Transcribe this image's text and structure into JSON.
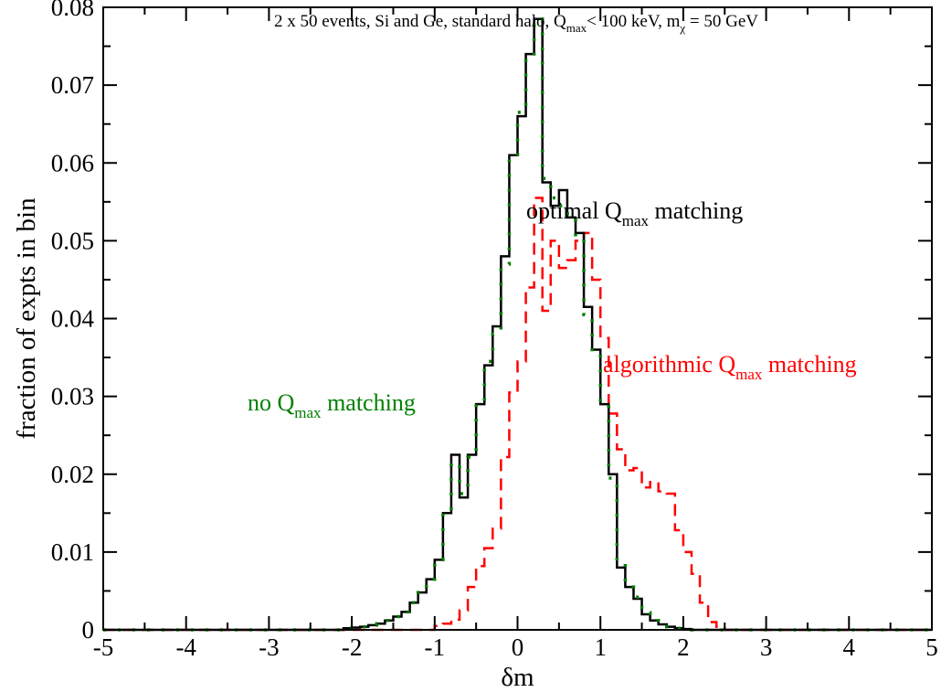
{
  "chart_data": {
    "type": "line",
    "title": {
      "pre": "2 x 50 events, Si and Ge, standard halo, Q",
      "sub1": "max",
      "mid": "< 100 keV, m",
      "sub2": "χ",
      "post": " = 50 GeV"
    },
    "xlabel": "δm",
    "ylabel": "fraction of expts in bin",
    "xlim": [
      -5,
      5
    ],
    "ylim": [
      0,
      0.08
    ],
    "x_ticks": [
      "-5",
      "-4",
      "-3",
      "-2",
      "-1",
      "0",
      "1",
      "2",
      "3",
      "4",
      "5"
    ],
    "y_ticks": [
      "0",
      "0.01",
      "0.02",
      "0.03",
      "0.04",
      "0.05",
      "0.06",
      "0.07",
      "0.08"
    ],
    "bin_width": 0.1,
    "bin_start": -5.0,
    "series": [
      {
        "key": "optimal",
        "label": {
          "pre": "optimal Q",
          "sub": "max",
          "post": " matching"
        },
        "color": "#000000",
        "style": "solid",
        "values": [
          0,
          0,
          0,
          0,
          0,
          0,
          0,
          0,
          0,
          0,
          0,
          0,
          0,
          0,
          0,
          0,
          0,
          0,
          0,
          0,
          0,
          0,
          0,
          0,
          0,
          0,
          0,
          0,
          0,
          0.0002,
          0.0003,
          0.0004,
          0.0006,
          0.0008,
          0.0012,
          0.0017,
          0.0023,
          0.0035,
          0.0048,
          0.0065,
          0.009,
          0.015,
          0.0225,
          0.017,
          0.0225,
          0.029,
          0.034,
          0.039,
          0.048,
          0.061,
          0.066,
          0.074,
          0.0785,
          0.0575,
          0.0545,
          0.0565,
          0.053,
          0.051,
          0.0415,
          0.036,
          0.029,
          0.02,
          0.008,
          0.0055,
          0.004,
          0.002,
          0.0012,
          0.0007,
          0.0004,
          0.0002,
          0.0001,
          0,
          0,
          0,
          0,
          0,
          0,
          0,
          0,
          0,
          0,
          0,
          0,
          0,
          0,
          0,
          0,
          0,
          0,
          0,
          0,
          0,
          0,
          0,
          0,
          0,
          0,
          0,
          0,
          0
        ]
      },
      {
        "key": "algorithmic",
        "label": {
          "pre": "algorithmic Q",
          "sub": "max",
          "post": " matching"
        },
        "color": "#ff0000",
        "style": "dashed",
        "values": [
          0,
          0,
          0,
          0,
          0,
          0,
          0,
          0,
          0,
          0,
          0,
          0,
          0,
          0,
          0,
          0,
          0,
          0,
          0,
          0,
          0,
          0,
          0,
          0,
          0,
          0,
          0,
          0,
          0,
          0,
          0,
          0,
          0,
          0,
          0,
          0,
          0,
          0,
          0,
          0,
          0.0005,
          0.0008,
          0.0013,
          0.0025,
          0.0055,
          0.0082,
          0.0105,
          0.013,
          0.0222,
          0.0305,
          0.0345,
          0.044,
          0.0555,
          0.041,
          0.05,
          0.0465,
          0.0475,
          0.05,
          0.051,
          0.045,
          0.0375,
          0.0278,
          0.0232,
          0.0205,
          0.0208,
          0.0183,
          0.019,
          0.0178,
          0.0175,
          0.0128,
          0.01,
          0.0072,
          0.0035,
          0.001,
          0.0004,
          0,
          0,
          0,
          0,
          0,
          0,
          0,
          0,
          0,
          0,
          0,
          0,
          0,
          0,
          0,
          0,
          0,
          0,
          0,
          0,
          0,
          0,
          0,
          0,
          0
        ]
      },
      {
        "key": "no_matching",
        "label": {
          "pre": "no Q",
          "sub": "max",
          "post": " matching"
        },
        "color": "#008000",
        "style": "dotted",
        "values": [
          0,
          0,
          0,
          0,
          0,
          0,
          0,
          0,
          0,
          0,
          0,
          0,
          0,
          0,
          0,
          0,
          0,
          0,
          0,
          0,
          0,
          0,
          0,
          0,
          0,
          0,
          0,
          0,
          0,
          0.0002,
          0.0003,
          0.0004,
          0.0006,
          0.0008,
          0.0012,
          0.0017,
          0.0023,
          0.0035,
          0.0048,
          0.0065,
          0.009,
          0.015,
          0.0215,
          0.0175,
          0.0222,
          0.029,
          0.0345,
          0.038,
          0.047,
          0.0605,
          0.0665,
          0.0735,
          0.0785,
          0.058,
          0.0555,
          0.0545,
          0.0535,
          0.0505,
          0.0405,
          0.036,
          0.029,
          0.0195,
          0.0085,
          0.0055,
          0.0042,
          0.0022,
          0.0012,
          0.0007,
          0.0004,
          0.0002,
          0.0001,
          0,
          0,
          0,
          0,
          0,
          0,
          0,
          0,
          0,
          0,
          0,
          0,
          0,
          0,
          0,
          0,
          0,
          0,
          0,
          0,
          0,
          0,
          0,
          0,
          0,
          0,
          0,
          0,
          0
        ]
      }
    ]
  }
}
